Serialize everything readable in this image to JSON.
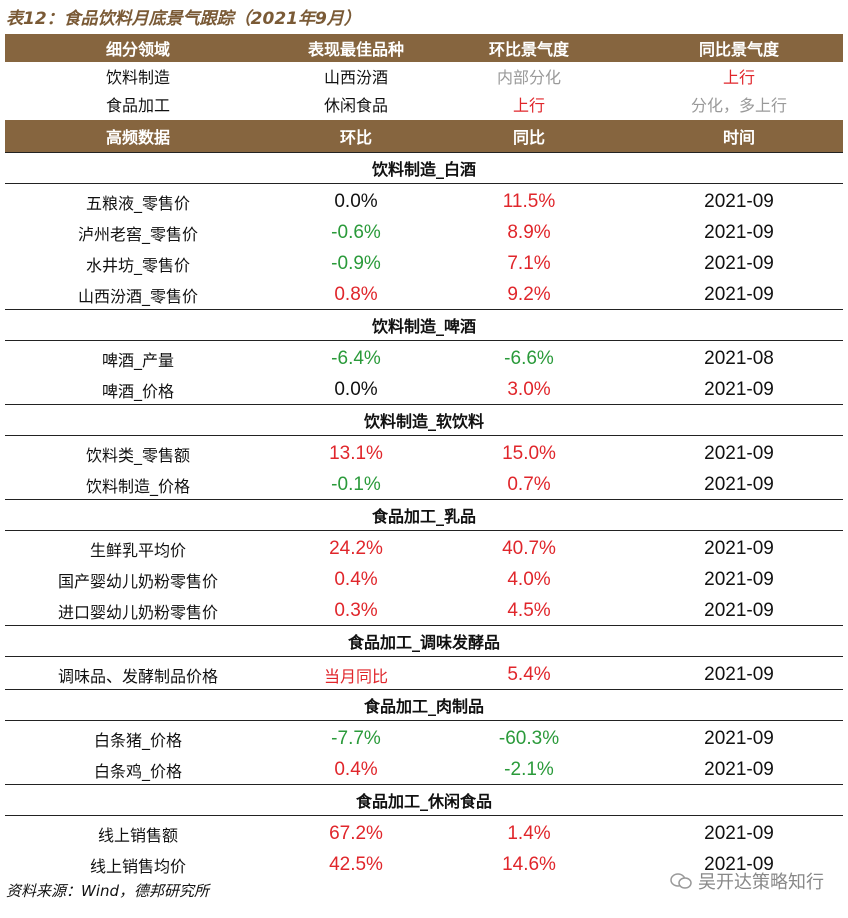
{
  "title": "表12：食品饮料月底景气跟踪（2021年9月）",
  "summary": {
    "header": [
      "细分领域",
      "表现最佳品种",
      "环比景气度",
      "同比景气度"
    ],
    "rows": [
      [
        "饮料制造",
        "山西汾酒",
        {
          "text": "内部分化",
          "color": "#9a9a9a"
        },
        {
          "text": "上行",
          "color": "#e0262b"
        }
      ],
      [
        "食品加工",
        "休闲食品",
        {
          "text": "上行",
          "color": "#e0262b"
        },
        {
          "text": "分化，多上行",
          "color": "#9a9a9a"
        }
      ]
    ]
  },
  "table": {
    "header": [
      "高频数据",
      "环比",
      "同比",
      "时间"
    ],
    "sections": [
      {
        "title": "饮料制造_白酒",
        "rows": [
          [
            "五粮液_零售价",
            "0.0%",
            "11.5%",
            "2021-09"
          ],
          [
            "泸州老窖_零售价",
            "-0.6%",
            "8.9%",
            "2021-09"
          ],
          [
            "水井坊_零售价",
            "-0.9%",
            "7.1%",
            "2021-09"
          ],
          [
            "山西汾酒_零售价",
            "0.8%",
            "9.2%",
            "2021-09"
          ]
        ]
      },
      {
        "title": "饮料制造_啤酒",
        "rows": [
          [
            "啤酒_产量",
            "-6.4%",
            "-6.6%",
            "2021-08"
          ],
          [
            "啤酒_价格",
            "0.0%",
            "3.0%",
            "2021-09"
          ]
        ]
      },
      {
        "title": "饮料制造_软饮料",
        "rows": [
          [
            "饮料类_零售额",
            "13.1%",
            "15.0%",
            "2021-09"
          ],
          [
            "饮料制造_价格",
            "-0.1%",
            "0.7%",
            "2021-09"
          ]
        ]
      },
      {
        "title": "食品加工_乳品",
        "rows": [
          [
            "生鲜乳平均价",
            "24.2%",
            "40.7%",
            "2021-09"
          ],
          [
            "国产婴幼儿奶粉零售价",
            "0.4%",
            "4.0%",
            "2021-09"
          ],
          [
            "进口婴幼儿奶粉零售价",
            "0.3%",
            "4.5%",
            "2021-09"
          ]
        ]
      },
      {
        "title": "食品加工_调味发酵品",
        "rows": [
          [
            "调味品、发酵制品价格",
            {
              "text": "当月同比",
              "color": "#e0262b"
            },
            "5.4%",
            "2021-09"
          ]
        ]
      },
      {
        "title": "食品加工_肉制品",
        "rows": [
          [
            "白条猪_价格",
            "-7.7%",
            "-60.3%",
            "2021-09"
          ],
          [
            "白条鸡_价格",
            "0.4%",
            "-2.1%",
            "2021-09"
          ]
        ]
      },
      {
        "title": "食品加工_休闲食品",
        "rows": [
          [
            "线上销售额",
            "67.2%",
            "1.4%",
            "2021-09"
          ],
          [
            "线上销售均价",
            "42.5%",
            "14.6%",
            "2021-09"
          ]
        ]
      }
    ]
  },
  "source": "资料来源：Wind，德邦研究所",
  "watermark": "吴开达策略知行"
}
